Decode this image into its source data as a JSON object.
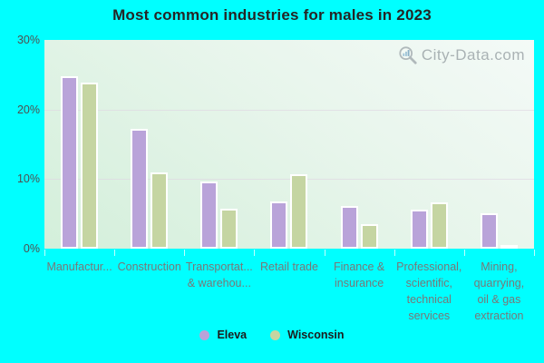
{
  "page": {
    "background_color": "#00ffff"
  },
  "watermark": {
    "text": "City-Data.com",
    "icon": "magnifier-bar-chart-icon"
  },
  "chart_data": {
    "type": "bar",
    "title": "Most common industries for males in 2023",
    "categories": [
      "Manufactur...",
      "Construction",
      "Transportat... & warehou...",
      "Retail trade",
      "Finance & insurance",
      "Professional, scientific, technical services",
      "Mining, quarrying, oil & gas extraction"
    ],
    "category_label_lines": [
      [
        "Manufactur..."
      ],
      [
        "Construction"
      ],
      [
        "Transportat...",
        "& warehou..."
      ],
      [
        "Retail trade"
      ],
      [
        "Finance &",
        "insurance"
      ],
      [
        "Professional,",
        "scientific,",
        "technical",
        "services"
      ],
      [
        "Mining,",
        "quarrying,",
        "oil & gas",
        "extraction"
      ]
    ],
    "series": [
      {
        "name": "Eleva",
        "color": "#b9a3d9",
        "values": [
          24.8,
          17.2,
          9.6,
          6.8,
          6.1,
          5.6,
          5.1
        ]
      },
      {
        "name": "Wisconsin",
        "color": "#c5d5a2",
        "values": [
          23.9,
          11.0,
          5.8,
          10.7,
          3.5,
          6.6,
          0.4
        ]
      }
    ],
    "xlabel": "",
    "ylabel": "",
    "ylim": [
      0,
      30
    ],
    "y_ticks": [
      {
        "label": "30%",
        "value": 30
      },
      {
        "label": "20%",
        "value": 20
      },
      {
        "label": "10%",
        "value": 10
      },
      {
        "label": "0%",
        "value": 0
      }
    ],
    "grid": "horizontal",
    "legend_position": "bottom"
  }
}
